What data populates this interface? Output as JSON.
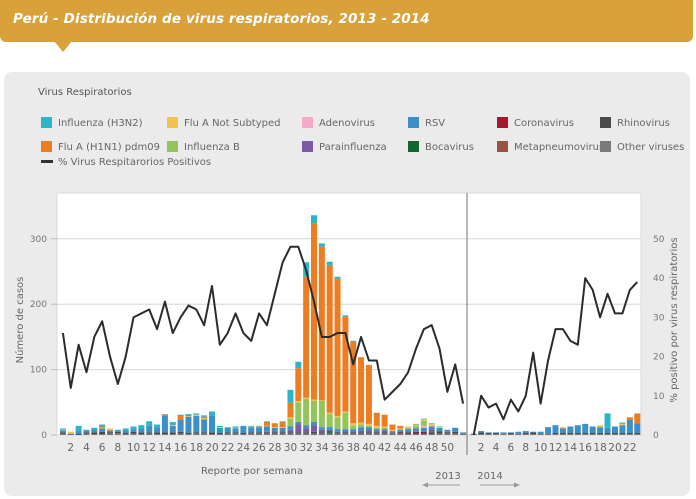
{
  "header": {
    "title": "Perú - Distribución de virus respiratorios, 2013 - 2014"
  },
  "legend": {
    "title": "Virus Respiratorios",
    "items": [
      {
        "label": "Influenza (H3N2)",
        "color": "#2bb5c9"
      },
      {
        "label": "Flu A Not Subtyped",
        "color": "#f2c14e"
      },
      {
        "label": "Adenovirus",
        "color": "#f4a9c8"
      },
      {
        "label": "RSV",
        "color": "#3d8fc7"
      },
      {
        "label": "Coronavirus",
        "color": "#a5172a"
      },
      {
        "label": "Rhinovirus",
        "color": "#4a4a4a"
      },
      {
        "label": "Flu A (H1N1) pdm09",
        "color": "#ee7d22"
      },
      {
        "label": "Influenza B",
        "color": "#93c55b"
      },
      {
        "label": "Parainfluenza",
        "color": "#7d5aa6"
      },
      {
        "label": "Bocavirus",
        "color": "#14652d"
      },
      {
        "label": "Metapneumovirus",
        "color": "#9a5244"
      },
      {
        "label": "Other viruses",
        "color": "#7a7a7a"
      }
    ],
    "line_label": "% Virus Respitarorios Positivos"
  },
  "chart_data": {
    "type": "bar",
    "title": "Perú - Distribución de virus respiratorios, 2013 - 2014",
    "xlabel": "Reporte por semana",
    "ylabel": "Número de casos",
    "y2label": "% positivo por virus respiratorios",
    "ylim": [
      0,
      370
    ],
    "y2lim": [
      0,
      61.7
    ],
    "yticks": [
      0,
      100,
      200,
      300
    ],
    "y2ticks": [
      0,
      10,
      20,
      30,
      40,
      50
    ],
    "grid": true,
    "years": [
      "2013",
      "2014"
    ],
    "weeks_2013": 52,
    "weeks_2014": 23,
    "xtick_labels_2013": [
      "2",
      "4",
      "6",
      "8",
      "10",
      "12",
      "14",
      "16",
      "18",
      "20",
      "22",
      "24",
      "26",
      "28",
      "30",
      "32",
      "34",
      "36",
      "38",
      "40",
      "42",
      "44",
      "46",
      "48",
      "50"
    ],
    "xtick_labels_2014": [
      "2",
      "4",
      "6",
      "8",
      "10",
      "12",
      "14",
      "16",
      "18",
      "20",
      "22"
    ],
    "stack_order": [
      "Other viruses",
      "Bocavirus",
      "Rhinovirus",
      "Parainfluenza",
      "Metapneumovirus",
      "Coronavirus",
      "RSV",
      "Adenovirus",
      "Influenza B",
      "Flu A Not Subtyped",
      "Flu A (H1N1) pdm09",
      "Influenza (H3N2)"
    ],
    "series": [
      {
        "name": "Influenza (H3N2)",
        "color": "#2bb5c9",
        "values_2013": [
          2,
          0,
          8,
          1,
          2,
          3,
          0,
          1,
          3,
          4,
          5,
          7,
          4,
          1,
          5,
          2,
          3,
          2,
          2,
          6,
          2,
          1,
          2,
          1,
          1,
          1,
          1,
          0,
          1,
          20,
          10,
          22,
          12,
          5,
          6,
          3,
          2,
          1,
          0,
          0,
          0,
          0,
          0,
          0,
          0,
          1,
          1,
          1,
          1,
          0,
          0,
          0
        ],
        "values_2014": [
          0,
          0,
          0,
          0,
          0,
          0,
          0,
          0,
          0,
          0,
          0,
          0,
          0,
          0,
          0,
          0,
          0,
          0,
          22,
          0,
          2,
          0,
          0
        ]
      },
      {
        "name": "Flu A Not Subtyped",
        "color": "#f2c14e",
        "values_2013": [
          1,
          3,
          0,
          0,
          0,
          1,
          3,
          0,
          0,
          0,
          0,
          0,
          0,
          0,
          1,
          0,
          1,
          2,
          2,
          0,
          1,
          0,
          1,
          0,
          1,
          1,
          1,
          1,
          1,
          2,
          2,
          2,
          2,
          1,
          2,
          2,
          2,
          3,
          3,
          3,
          3,
          2,
          2,
          1,
          2,
          2,
          2,
          2,
          1,
          0,
          0,
          0
        ],
        "values_2014": [
          0,
          0,
          0,
          0,
          0,
          0,
          0,
          0,
          0,
          0,
          0,
          0,
          2,
          0,
          0,
          0,
          0,
          3,
          0,
          0,
          2,
          0,
          0
        ]
      },
      {
        "name": "Adenovirus",
        "color": "#f4a9c8",
        "values_2013": [
          0,
          0,
          0,
          0,
          0,
          0,
          0,
          0,
          0,
          0,
          0,
          0,
          0,
          0,
          0,
          0,
          0,
          0,
          0,
          0,
          0,
          0,
          0,
          0,
          0,
          0,
          0,
          0,
          0,
          0,
          0,
          0,
          0,
          0,
          0,
          0,
          0,
          0,
          0,
          0,
          0,
          0,
          0,
          0,
          0,
          0,
          3,
          1,
          0,
          0,
          0,
          0
        ],
        "values_2014": [
          0,
          0,
          0,
          0,
          0,
          0,
          0,
          0,
          0,
          0,
          0,
          0,
          0,
          0,
          0,
          0,
          0,
          0,
          0,
          0,
          0,
          0,
          0
        ]
      },
      {
        "name": "RSV",
        "color": "#3d8fc7",
        "values_2013": [
          3,
          1,
          4,
          3,
          5,
          5,
          3,
          2,
          4,
          4,
          6,
          10,
          8,
          25,
          10,
          18,
          25,
          25,
          20,
          26,
          8,
          7,
          6,
          10,
          8,
          8,
          8,
          5,
          5,
          5,
          4,
          5,
          5,
          4,
          4,
          4,
          3,
          3,
          5,
          5,
          3,
          2,
          2,
          3,
          5,
          5,
          6,
          6,
          5,
          3,
          6,
          2
        ],
        "values_2014": [
          1,
          2,
          1,
          1,
          2,
          1,
          3,
          3,
          1,
          3,
          10,
          12,
          7,
          10,
          12,
          14,
          10,
          9,
          8,
          10,
          12,
          20,
          15
        ]
      },
      {
        "name": "Coronavirus",
        "color": "#a5172a",
        "values_2013": [
          0,
          0,
          0,
          0,
          0,
          0,
          0,
          0,
          0,
          0,
          0,
          0,
          0,
          0,
          0,
          0,
          0,
          0,
          0,
          0,
          0,
          0,
          0,
          0,
          0,
          0,
          0,
          0,
          0,
          0,
          0,
          0,
          0,
          0,
          0,
          0,
          0,
          0,
          0,
          0,
          0,
          0,
          0,
          1,
          1,
          2,
          2,
          1,
          1,
          0,
          0,
          0
        ],
        "values_2014": [
          0,
          0,
          0,
          0,
          0,
          0,
          0,
          0,
          0,
          0,
          0,
          0,
          0,
          0,
          0,
          0,
          0,
          0,
          0,
          0,
          0,
          0,
          0
        ]
      },
      {
        "name": "Rhinovirus",
        "color": "#4a4a4a",
        "values_2013": [
          2,
          1,
          2,
          2,
          3,
          4,
          2,
          2,
          2,
          3,
          3,
          2,
          3,
          3,
          3,
          3,
          2,
          2,
          2,
          3,
          2,
          2,
          2,
          2,
          2,
          2,
          2,
          2,
          2,
          2,
          2,
          2,
          3,
          2,
          2,
          2,
          2,
          2,
          2,
          2,
          2,
          2,
          1,
          2,
          2,
          2,
          2,
          3,
          3,
          2,
          3,
          1
        ],
        "values_2014": [
          1,
          3,
          2,
          2,
          1,
          2,
          1,
          2,
          3,
          1,
          1,
          2,
          2,
          2,
          2,
          2,
          2,
          2,
          2,
          2,
          2,
          2,
          2
        ]
      },
      {
        "name": "Flu A (H1N1) pdm09",
        "color": "#ee7d22",
        "values_2013": [
          0,
          0,
          0,
          0,
          0,
          2,
          0,
          0,
          0,
          0,
          0,
          0,
          0,
          2,
          0,
          6,
          0,
          0,
          2,
          0,
          0,
          0,
          0,
          0,
          0,
          0,
          6,
          6,
          8,
          22,
          50,
          185,
          270,
          235,
          225,
          210,
          145,
          125,
          100,
          90,
          20,
          18,
          8,
          4,
          0,
          0,
          0,
          0,
          0,
          0,
          0,
          0
        ],
        "values_2014": [
          0,
          0,
          0,
          0,
          0,
          0,
          0,
          0,
          0,
          0,
          0,
          0,
          0,
          0,
          0,
          0,
          0,
          0,
          0,
          0,
          0,
          4,
          15
        ]
      },
      {
        "name": "Influenza B",
        "color": "#93c55b",
        "values_2013": [
          0,
          0,
          0,
          0,
          0,
          0,
          0,
          0,
          0,
          0,
          0,
          0,
          0,
          0,
          0,
          0,
          0,
          0,
          0,
          0,
          0,
          0,
          0,
          0,
          0,
          0,
          0,
          0,
          0,
          12,
          30,
          40,
          32,
          40,
          20,
          18,
          25,
          6,
          4,
          2,
          2,
          2,
          0,
          1,
          2,
          4,
          8,
          1,
          0,
          0,
          0,
          0
        ],
        "values_2014": [
          0,
          0,
          0,
          0,
          0,
          0,
          0,
          0,
          0,
          0,
          0,
          0,
          0,
          0,
          0,
          0,
          0,
          0,
          0,
          0,
          0,
          0,
          0
        ]
      },
      {
        "name": "Parainfluenza",
        "color": "#7d5aa6",
        "values_2013": [
          0,
          0,
          0,
          0,
          0,
          0,
          0,
          0,
          0,
          0,
          0,
          0,
          0,
          0,
          0,
          0,
          0,
          0,
          0,
          0,
          0,
          0,
          0,
          0,
          0,
          0,
          1,
          2,
          2,
          4,
          12,
          6,
          10,
          4,
          2,
          1,
          2,
          2,
          3,
          3,
          2,
          3,
          1,
          0,
          0,
          0,
          0,
          2,
          0,
          1,
          0,
          0
        ],
        "values_2014": [
          0,
          0,
          0,
          0,
          0,
          0,
          0,
          0,
          0,
          0,
          0,
          0,
          0,
          0,
          0,
          0,
          0,
          0,
          0,
          0,
          0,
          0,
          0
        ]
      },
      {
        "name": "Bocavirus",
        "color": "#14652d",
        "values_2013": [
          0,
          0,
          0,
          0,
          0,
          0,
          0,
          0,
          0,
          0,
          0,
          0,
          0,
          0,
          0,
          0,
          0,
          0,
          0,
          0,
          0,
          0,
          0,
          0,
          0,
          0,
          0,
          0,
          0,
          0,
          0,
          0,
          0,
          0,
          2,
          0,
          0,
          0,
          0,
          0,
          0,
          0,
          0,
          0,
          0,
          0,
          0,
          0,
          0,
          0,
          0,
          0
        ],
        "values_2014": [
          0,
          0,
          0,
          0,
          0,
          0,
          0,
          0,
          0,
          0,
          0,
          0,
          0,
          0,
          0,
          0,
          0,
          0,
          0,
          0,
          0,
          0,
          0
        ]
      },
      {
        "name": "Metapneumovirus",
        "color": "#9a5244",
        "values_2013": [
          0,
          0,
          0,
          0,
          0,
          0,
          0,
          0,
          0,
          0,
          0,
          0,
          0,
          0,
          0,
          0,
          0,
          0,
          0,
          0,
          0,
          0,
          0,
          0,
          0,
          0,
          0,
          0,
          0,
          0,
          0,
          0,
          0,
          0,
          0,
          0,
          0,
          0,
          0,
          0,
          0,
          0,
          0,
          0,
          0,
          0,
          0,
          0,
          0,
          0,
          0,
          0
        ],
        "values_2014": [
          0,
          0,
          0,
          0,
          0,
          0,
          0,
          0,
          0,
          0,
          0,
          0,
          0,
          0,
          0,
          0,
          0,
          0,
          0,
          0,
          0,
          0,
          0
        ]
      },
      {
        "name": "Other viruses",
        "color": "#7a7a7a",
        "values_2013": [
          2,
          0,
          0,
          2,
          1,
          1,
          2,
          3,
          1,
          2,
          1,
          2,
          1,
          1,
          1,
          2,
          1,
          2,
          2,
          1,
          1,
          2,
          2,
          1,
          2,
          2,
          2,
          2,
          2,
          2,
          2,
          2,
          2,
          2,
          2,
          2,
          2,
          2,
          2,
          2,
          2,
          2,
          2,
          2,
          1,
          1,
          1,
          1,
          2,
          2,
          2,
          1
        ],
        "values_2014": [
          0,
          1,
          1,
          1,
          1,
          1,
          1,
          1,
          1,
          1,
          1,
          1,
          1,
          1,
          1,
          1,
          1,
          1,
          1,
          1,
          1,
          1,
          1
        ]
      }
    ],
    "line": {
      "name": "% Virus Respitarorios Positivos",
      "axis": "right",
      "values_2013": [
        26,
        12,
        23,
        16,
        25,
        29,
        20,
        13,
        20,
        30,
        31,
        32,
        27,
        34,
        26,
        30,
        33,
        32,
        28,
        38,
        23,
        26,
        31,
        26,
        24,
        31,
        28,
        36,
        44,
        48,
        48,
        42,
        34,
        25,
        25,
        26,
        26,
        18,
        25,
        19,
        19,
        9,
        11,
        13,
        16,
        22,
        27,
        28,
        22,
        11,
        18,
        8
      ],
      "values_2014": [
        0,
        10,
        7,
        8,
        4,
        9,
        6,
        10,
        21,
        8,
        19,
        27,
        27,
        24,
        23,
        40,
        37,
        30,
        36,
        31,
        31,
        37,
        39
      ]
    }
  }
}
